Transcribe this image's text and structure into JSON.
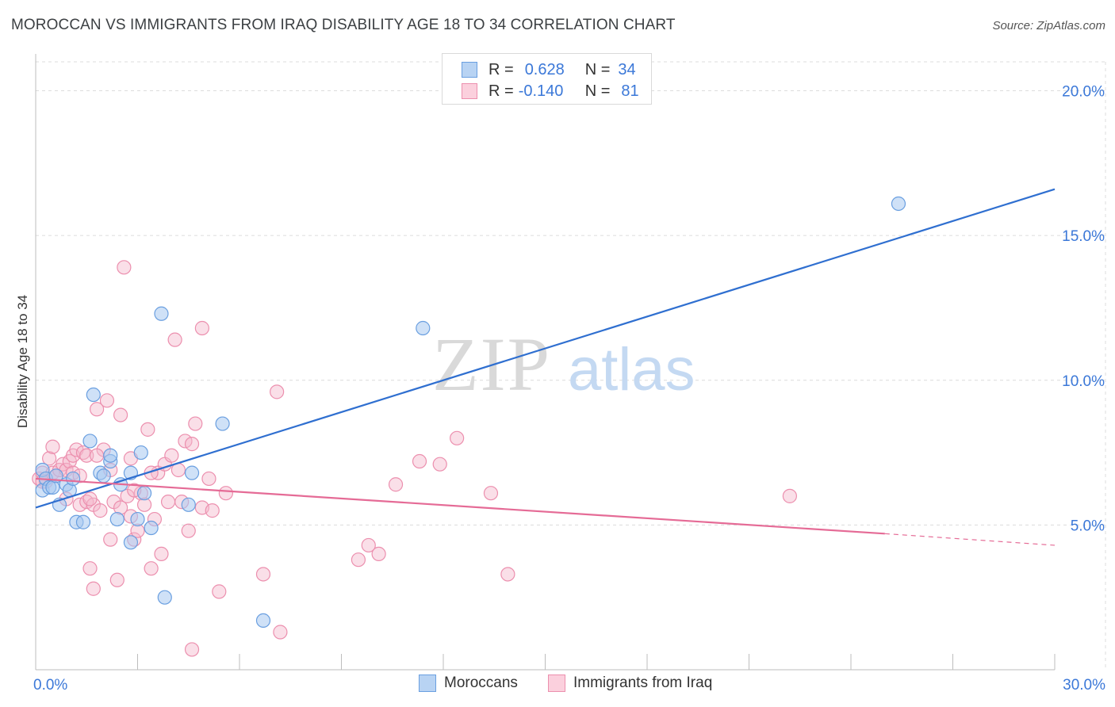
{
  "title": "MOROCCAN VS IMMIGRANTS FROM IRAQ DISABILITY AGE 18 TO 34 CORRELATION CHART",
  "source": "Source: ZipAtlas.com",
  "watermark": {
    "zip": "ZIP",
    "atlas": "atlas"
  },
  "legend": {
    "series1": {
      "r_label": "R =",
      "r_value": "0.628",
      "n_label": "N =",
      "n_value": "34"
    },
    "series2": {
      "r_label": "R =",
      "r_value": "-0.140",
      "n_label": "N =",
      "n_value": "81"
    }
  },
  "bottom_legend": {
    "series1": "Moroccans",
    "series2": "Immigrants from Iraq"
  },
  "colors": {
    "blue_fill": "#a8c8f0",
    "blue_stroke": "#6a9fe0",
    "blue_line": "#2f6fd0",
    "pink_fill": "#f5b8cb",
    "pink_stroke": "#ec8fae",
    "pink_line": "#e56b96",
    "axis_text": "#3b78d8",
    "grid": "#dcdcdc"
  },
  "chart_data": {
    "type": "scatter",
    "title": "MOROCCAN VS IMMIGRANTS FROM IRAQ DISABILITY AGE 18 TO 34 CORRELATION CHART",
    "xlabel": "",
    "ylabel": "Disability Age 18 to 34",
    "xlim": [
      0,
      30
    ],
    "ylim": [
      0,
      21
    ],
    "x_tick_labels": [
      {
        "value": 0,
        "label": "0.0%"
      },
      {
        "value": 30,
        "label": "30.0%"
      }
    ],
    "y_tick_labels": [
      {
        "value": 5,
        "label": "5.0%"
      },
      {
        "value": 10,
        "label": "10.0%"
      },
      {
        "value": 15,
        "label": "15.0%"
      },
      {
        "value": 20,
        "label": "20.0%"
      }
    ],
    "series": [
      {
        "name": "Moroccans",
        "R": 0.628,
        "N": 34,
        "trend": {
          "x0": 0,
          "y0": 5.6,
          "x1": 30,
          "y1": 16.6
        },
        "points": [
          [
            0.2,
            6.9
          ],
          [
            0.2,
            6.2
          ],
          [
            0.3,
            6.6
          ],
          [
            0.4,
            6.3
          ],
          [
            0.5,
            6.3
          ],
          [
            0.6,
            6.7
          ],
          [
            0.7,
            5.7
          ],
          [
            0.9,
            6.4
          ],
          [
            1.0,
            6.2
          ],
          [
            1.1,
            6.6
          ],
          [
            1.2,
            5.1
          ],
          [
            1.4,
            5.1
          ],
          [
            1.6,
            7.9
          ],
          [
            1.7,
            9.5
          ],
          [
            1.9,
            6.8
          ],
          [
            2.0,
            6.7
          ],
          [
            2.2,
            7.2
          ],
          [
            2.2,
            7.4
          ],
          [
            2.4,
            5.2
          ],
          [
            2.5,
            6.4
          ],
          [
            2.8,
            6.8
          ],
          [
            2.8,
            4.4
          ],
          [
            3.0,
            5.2
          ],
          [
            3.1,
            7.5
          ],
          [
            3.2,
            6.1
          ],
          [
            3.4,
            4.9
          ],
          [
            3.7,
            12.3
          ],
          [
            3.8,
            2.5
          ],
          [
            4.5,
            5.7
          ],
          [
            4.6,
            6.8
          ],
          [
            5.5,
            8.5
          ],
          [
            6.7,
            1.7
          ],
          [
            11.4,
            11.8
          ],
          [
            25.4,
            16.1
          ]
        ]
      },
      {
        "name": "Immigrants from Iraq",
        "R": -0.14,
        "N": 81,
        "trend": {
          "x0": 0,
          "y0": 6.6,
          "x1": 25.0,
          "y1": 4.7
        },
        "trend_dashed": {
          "x0": 25.0,
          "y0": 4.7,
          "x1": 30,
          "y1": 4.3
        },
        "points": [
          [
            0.1,
            6.6
          ],
          [
            0.2,
            6.8
          ],
          [
            0.3,
            6.5
          ],
          [
            0.4,
            7.3
          ],
          [
            0.5,
            6.8
          ],
          [
            0.5,
            7.7
          ],
          [
            0.6,
            6.7
          ],
          [
            0.7,
            6.9
          ],
          [
            0.8,
            7.1
          ],
          [
            0.9,
            6.9
          ],
          [
            1.0,
            7.2
          ],
          [
            1.1,
            7.4
          ],
          [
            1.1,
            6.8
          ],
          [
            1.2,
            7.6
          ],
          [
            1.3,
            5.7
          ],
          [
            1.4,
            7.5
          ],
          [
            1.5,
            7.4
          ],
          [
            1.5,
            5.8
          ],
          [
            1.6,
            3.5
          ],
          [
            1.7,
            5.7
          ],
          [
            1.7,
            2.8
          ],
          [
            1.8,
            9.0
          ],
          [
            1.9,
            5.5
          ],
          [
            2.0,
            7.6
          ],
          [
            2.1,
            9.3
          ],
          [
            2.2,
            6.9
          ],
          [
            2.3,
            5.8
          ],
          [
            2.4,
            3.1
          ],
          [
            2.5,
            5.6
          ],
          [
            2.5,
            8.8
          ],
          [
            2.6,
            13.9
          ],
          [
            2.7,
            6.0
          ],
          [
            2.8,
            5.3
          ],
          [
            2.8,
            7.3
          ],
          [
            2.9,
            4.5
          ],
          [
            3.0,
            4.8
          ],
          [
            3.1,
            6.1
          ],
          [
            3.2,
            5.7
          ],
          [
            3.3,
            8.3
          ],
          [
            3.4,
            3.5
          ],
          [
            3.5,
            5.2
          ],
          [
            3.6,
            6.8
          ],
          [
            3.7,
            4.0
          ],
          [
            3.8,
            7.1
          ],
          [
            3.9,
            5.8
          ],
          [
            4.0,
            7.4
          ],
          [
            4.1,
            11.4
          ],
          [
            4.2,
            6.9
          ],
          [
            4.3,
            5.8
          ],
          [
            4.4,
            7.9
          ],
          [
            4.5,
            4.8
          ],
          [
            4.6,
            7.8
          ],
          [
            4.7,
            8.5
          ],
          [
            4.9,
            5.6
          ],
          [
            4.9,
            11.8
          ],
          [
            5.1,
            6.6
          ],
          [
            5.2,
            5.5
          ],
          [
            5.4,
            2.7
          ],
          [
            5.6,
            6.1
          ],
          [
            6.7,
            3.3
          ],
          [
            7.1,
            9.6
          ],
          [
            7.2,
            1.3
          ],
          [
            9.5,
            3.8
          ],
          [
            9.8,
            4.3
          ],
          [
            10.1,
            4.0
          ],
          [
            10.6,
            6.4
          ],
          [
            11.3,
            7.2
          ],
          [
            11.9,
            7.1
          ],
          [
            12.4,
            8.0
          ],
          [
            13.4,
            6.1
          ],
          [
            13.9,
            3.3
          ],
          [
            4.6,
            0.7
          ],
          [
            22.2,
            6.0
          ],
          [
            0.2,
            6.5
          ],
          [
            1.6,
            5.9
          ],
          [
            2.2,
            4.5
          ],
          [
            3.4,
            6.8
          ],
          [
            0.9,
            5.9
          ],
          [
            1.3,
            6.7
          ],
          [
            2.9,
            6.2
          ],
          [
            1.8,
            7.4
          ]
        ]
      }
    ]
  }
}
